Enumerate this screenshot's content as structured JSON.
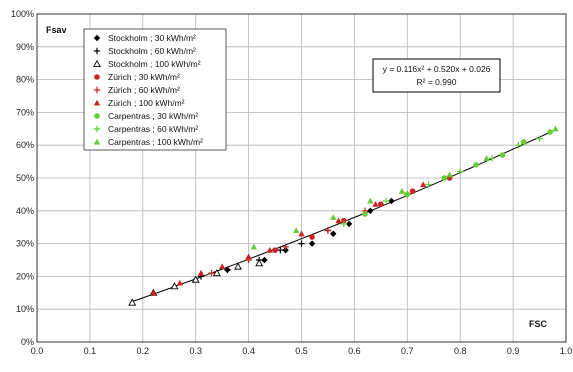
{
  "chart_data": {
    "type": "scatter",
    "title": "",
    "xlabel": "FSC",
    "ylabel": "Fsav",
    "xlim": [
      0.0,
      1.0
    ],
    "ylim": [
      0,
      100
    ],
    "x_ticks": [
      "0.0",
      "0.1",
      "0.2",
      "0.3",
      "0.4",
      "0.5",
      "0.6",
      "0.7",
      "0.8",
      "0.9",
      "1.0"
    ],
    "y_ticks": [
      "0%",
      "10%",
      "20%",
      "30%",
      "40%",
      "50%",
      "60%",
      "70%",
      "80%",
      "90%",
      "100%"
    ],
    "grid": true,
    "legend_position": "top-left",
    "series": [
      {
        "name": "Stockholm ; 30 kWh/m²",
        "color": "#000000",
        "marker": "diamond",
        "points": [
          [
            0.36,
            22
          ],
          [
            0.43,
            25
          ],
          [
            0.47,
            28
          ],
          [
            0.52,
            30
          ],
          [
            0.56,
            33
          ],
          [
            0.59,
            36
          ],
          [
            0.63,
            40
          ],
          [
            0.67,
            43
          ]
        ]
      },
      {
        "name": "Stockholm ; 60 kWh/m²",
        "color": "#000000",
        "marker": "plus",
        "points": [
          [
            0.31,
            20
          ],
          [
            0.36,
            22
          ],
          [
            0.42,
            25
          ],
          [
            0.46,
            28
          ],
          [
            0.5,
            30
          ],
          [
            0.55,
            34
          ]
        ]
      },
      {
        "name": "Stockholm ; 100 kWh/m²",
        "color": "#000000",
        "marker": "triangle-open",
        "points": [
          [
            0.18,
            12
          ],
          [
            0.22,
            15
          ],
          [
            0.26,
            17
          ],
          [
            0.3,
            19
          ],
          [
            0.34,
            21
          ],
          [
            0.38,
            23
          ],
          [
            0.42,
            24
          ]
        ]
      },
      {
        "name": "Zürich ; 30 kWh/m²",
        "color": "#cc2222",
        "marker": "circle",
        "points": [
          [
            0.45,
            28
          ],
          [
            0.52,
            32
          ],
          [
            0.58,
            37
          ],
          [
            0.65,
            42
          ],
          [
            0.71,
            46
          ],
          [
            0.78,
            50
          ]
        ]
      },
      {
        "name": "Zürich ; 60 kWh/m²",
        "color": "#cc2222",
        "marker": "plus",
        "points": [
          [
            0.33,
            21
          ],
          [
            0.4,
            25
          ],
          [
            0.47,
            29
          ],
          [
            0.55,
            34
          ],
          [
            0.62,
            40
          ],
          [
            0.7,
            45
          ]
        ]
      },
      {
        "name": "Zürich ; 100 kWh/m²",
        "color": "#cc2222",
        "marker": "triangle",
        "points": [
          [
            0.22,
            15
          ],
          [
            0.27,
            18
          ],
          [
            0.31,
            21
          ],
          [
            0.35,
            23
          ],
          [
            0.4,
            26
          ],
          [
            0.44,
            28
          ],
          [
            0.5,
            33
          ],
          [
            0.57,
            37
          ],
          [
            0.64,
            42
          ],
          [
            0.73,
            48
          ]
        ]
      },
      {
        "name": "Carpentras ; 30 kWh/m²",
        "color": "#66cc33",
        "marker": "circle",
        "points": [
          [
            0.62,
            39
          ],
          [
            0.7,
            45
          ],
          [
            0.77,
            50
          ],
          [
            0.83,
            54
          ],
          [
            0.88,
            57
          ],
          [
            0.92,
            61
          ],
          [
            0.97,
            64
          ]
        ]
      },
      {
        "name": "Carpentras ; 60 kWh/m²",
        "color": "#66cc33",
        "marker": "plus",
        "points": [
          [
            0.58,
            36
          ],
          [
            0.66,
            43
          ],
          [
            0.74,
            48
          ],
          [
            0.8,
            52
          ],
          [
            0.86,
            56
          ],
          [
            0.91,
            60
          ],
          [
            0.95,
            62
          ]
        ]
      },
      {
        "name": "Carpentras ; 100 kWh/m²",
        "color": "#66cc33",
        "marker": "triangle",
        "points": [
          [
            0.41,
            29
          ],
          [
            0.49,
            34
          ],
          [
            0.56,
            38
          ],
          [
            0.63,
            43
          ],
          [
            0.69,
            46
          ],
          [
            0.78,
            51
          ],
          [
            0.85,
            56
          ],
          [
            0.92,
            61
          ],
          [
            0.98,
            65
          ]
        ]
      }
    ],
    "fit": {
      "equation": "y = 0.116x² + 0.520x + 0.026",
      "r2": "R² = 0.990",
      "a": 0.116,
      "b": 0.52,
      "c": 0.026,
      "x_range": [
        0.18,
        0.98
      ],
      "color": "#000000"
    }
  }
}
